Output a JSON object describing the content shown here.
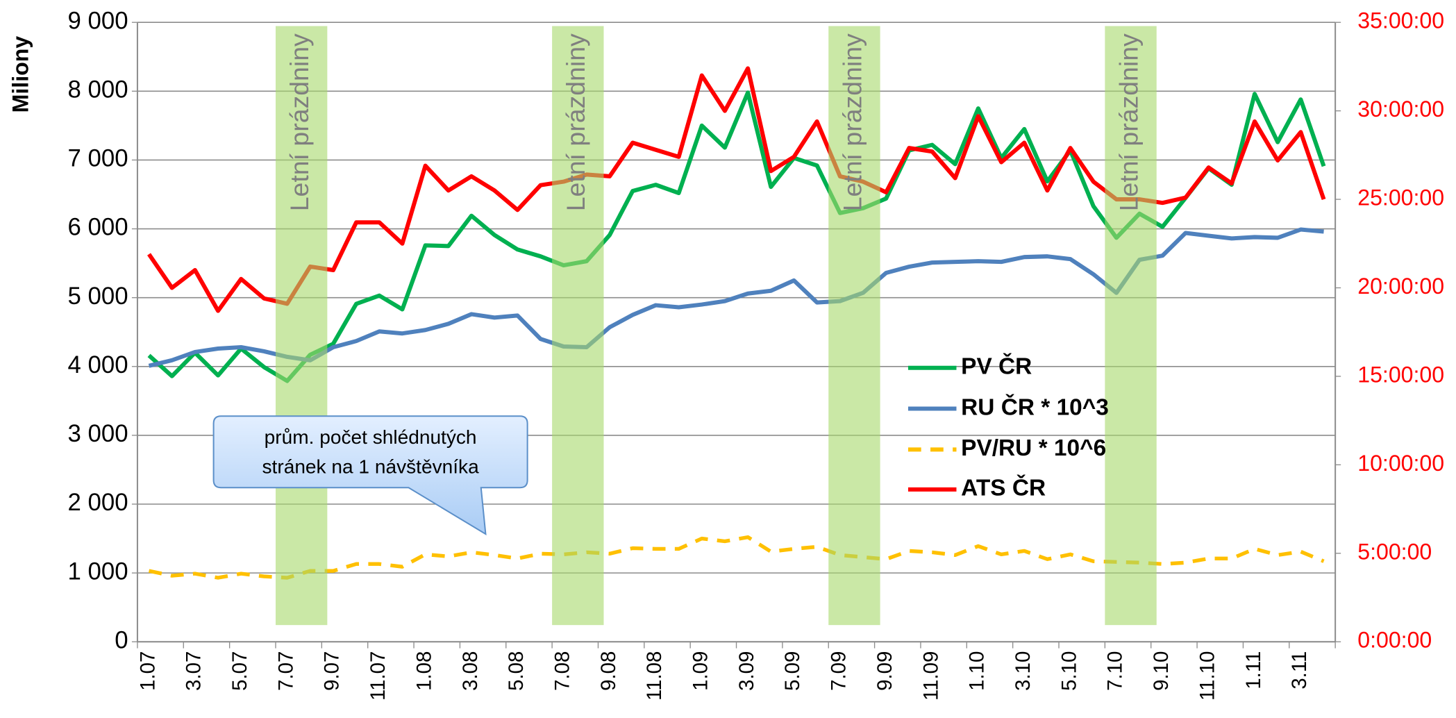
{
  "chart_data": {
    "type": "line",
    "ylabel": "Miliony",
    "categories": [
      "1.07",
      null,
      "3.07",
      null,
      "5.07",
      null,
      "7.07",
      null,
      "9.07",
      null,
      "11.07",
      null,
      "1.08",
      null,
      "3.08",
      null,
      "5.08",
      null,
      "7.08",
      null,
      "9.08",
      null,
      "11.08",
      null,
      "1.09",
      null,
      "3.09",
      null,
      "5.09",
      null,
      "7.09",
      null,
      "9.09",
      null,
      "11.09",
      null,
      "1.10",
      null,
      "3.10",
      null,
      "5.10",
      null,
      "7.10",
      null,
      "9.10",
      null,
      "11.10",
      null,
      "1.11",
      null,
      "3.11",
      null
    ],
    "ylim": [
      0,
      9000
    ],
    "yticks": [
      0,
      {
        "value": 1000,
        "label": "1 000"
      },
      {
        "value": 2000,
        "label": "2 000"
      },
      {
        "value": 3000,
        "label": "3 000"
      },
      {
        "value": 4000,
        "label": "4 000"
      },
      {
        "value": 5000,
        "label": "5 000"
      },
      {
        "value": 6000,
        "label": "6 000"
      },
      {
        "value": 7000,
        "label": "7 000"
      },
      {
        "value": 8000,
        "label": "8 000"
      },
      {
        "value": 9000,
        "label": "9 000"
      }
    ],
    "y2lim": [
      0,
      35
    ],
    "y2ticks": [
      {
        "value": 0,
        "label": "0:00:00"
      },
      {
        "value": 5,
        "label": "5:00:00"
      },
      {
        "value": 10,
        "label": "10:00:00"
      },
      {
        "value": 15,
        "label": "15:00:00"
      },
      {
        "value": 20,
        "label": "20:00:00"
      },
      {
        "value": 25,
        "label": "25:00:00"
      },
      {
        "value": 30,
        "label": "30:00:00"
      },
      {
        "value": 35,
        "label": "35:00:00"
      }
    ],
    "y2color": "#ff0000",
    "grid": true,
    "series": [
      {
        "name": "PV ČR",
        "color": "#00b050",
        "values": [
          4160,
          3860,
          4200,
          3870,
          4260,
          3990,
          3790,
          4170,
          4330,
          4910,
          5030,
          4830,
          5760,
          5750,
          6190,
          5910,
          5700,
          5600,
          5470,
          5530,
          5910,
          6550,
          6640,
          6520,
          7500,
          7180,
          7980,
          6610,
          7030,
          6920,
          6230,
          6300,
          6440,
          7140,
          7220,
          6940,
          7750,
          7030,
          7450,
          6690,
          7140,
          6330,
          5870,
          6220,
          6030,
          6450,
          6880,
          6640,
          7960,
          7260,
          7880,
          6910
        ]
      },
      {
        "name": "RU ČR * 10^3",
        "color": "#4f81bd",
        "values": [
          4010,
          4090,
          4210,
          4260,
          4280,
          4220,
          4140,
          4090,
          4280,
          4370,
          4510,
          4480,
          4530,
          4620,
          4760,
          4710,
          4740,
          4400,
          4290,
          4280,
          4570,
          4750,
          4890,
          4860,
          4900,
          4950,
          5060,
          5100,
          5250,
          4930,
          4950,
          5070,
          5360,
          5450,
          5510,
          5520,
          5530,
          5520,
          5590,
          5600,
          5560,
          5340,
          5070,
          5550,
          5610,
          5940,
          5900,
          5860,
          5880,
          5870,
          5990,
          5960
        ]
      },
      {
        "name": "PV/RU * 10^6",
        "color": "#ffc000",
        "dashed": true,
        "values": [
          1030,
          960,
          990,
          930,
          990,
          950,
          930,
          1030,
          1030,
          1130,
          1130,
          1090,
          1270,
          1240,
          1300,
          1260,
          1210,
          1280,
          1270,
          1300,
          1280,
          1360,
          1350,
          1350,
          1500,
          1460,
          1520,
          1310,
          1350,
          1380,
          1260,
          1230,
          1200,
          1320,
          1300,
          1260,
          1390,
          1270,
          1320,
          1200,
          1270,
          1170,
          1160,
          1150,
          1130,
          1150,
          1210,
          1210,
          1350,
          1260,
          1310,
          1170
        ]
      },
      {
        "name": "ATS ČR",
        "color": "#ff0000",
        "axis": "y2",
        "values": [
          21.9,
          20.0,
          21.0,
          18.7,
          20.5,
          19.4,
          19.1,
          21.2,
          21.0,
          23.7,
          23.7,
          22.5,
          26.9,
          25.5,
          26.3,
          25.5,
          24.4,
          25.8,
          26.0,
          26.4,
          26.3,
          28.2,
          27.8,
          27.4,
          32.0,
          30.0,
          32.4,
          26.6,
          27.4,
          29.4,
          26.3,
          26.0,
          25.4,
          27.9,
          27.7,
          26.2,
          29.7,
          27.1,
          28.2,
          25.5,
          27.9,
          26.0,
          25.0,
          25.0,
          24.8,
          25.1,
          26.8,
          25.9,
          29.4,
          27.2,
          28.8,
          25.0
        ]
      }
    ],
    "bands": [
      {
        "label": "Letní prázdniny",
        "start": 6,
        "end": 7
      },
      {
        "label": "Letní prázdniny",
        "start": 18,
        "end": 19
      },
      {
        "label": "Letní prázdniny",
        "start": 30,
        "end": 31
      },
      {
        "label": "Letní prázdniny",
        "start": 42,
        "end": 43
      }
    ],
    "callout": [
      "prům. počet shlédnutých",
      "stránek na 1 návštěvníka"
    ]
  }
}
